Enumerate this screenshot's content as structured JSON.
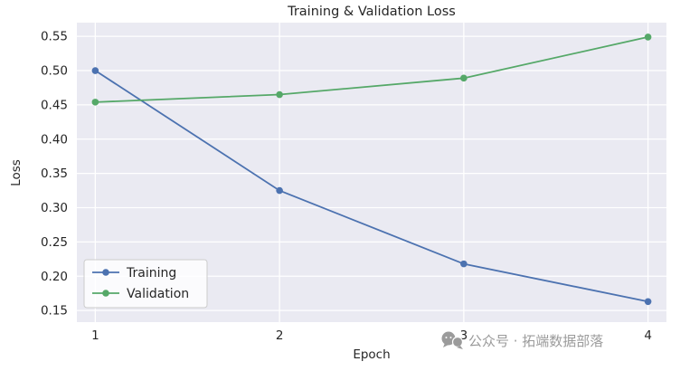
{
  "chart_data": {
    "type": "line",
    "title": "Training & Validation Loss",
    "xlabel": "Epoch",
    "ylabel": "Loss",
    "x": [
      1,
      2,
      3,
      4
    ],
    "series": [
      {
        "name": "Training",
        "color": "#4c72b0",
        "values": [
          0.5,
          0.325,
          0.218,
          0.163
        ]
      },
      {
        "name": "Validation",
        "color": "#55a868",
        "values": [
          0.454,
          0.465,
          0.489,
          0.549
        ]
      }
    ],
    "xticks": [
      1,
      2,
      3,
      4
    ],
    "yticks": [
      0.15,
      0.2,
      0.25,
      0.3,
      0.35,
      0.4,
      0.45,
      0.5,
      0.55
    ],
    "xlim": [
      0.9,
      4.1
    ],
    "ylim": [
      0.133,
      0.57
    ],
    "grid": true,
    "legend_position": "lower left",
    "plot_bg": "#eaeaf2",
    "grid_color": "#ffffff",
    "text_color": "#262626"
  },
  "legend": {
    "entries": [
      "Training",
      "Validation"
    ]
  },
  "watermark": {
    "icon": "wechat-icon",
    "text": "公众号 · 拓端数据部落",
    "color": "#9b9b9b"
  }
}
